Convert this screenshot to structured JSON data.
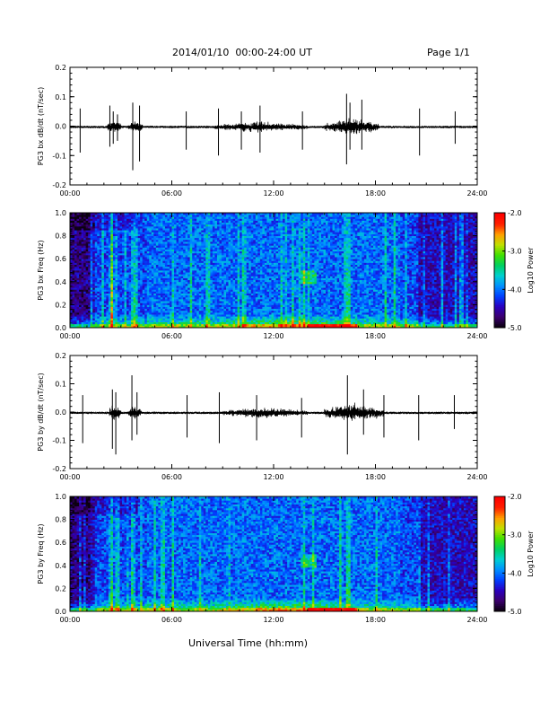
{
  "header": {
    "title": "2014/01/10  00:00-24:00 UT",
    "page": "Page 1/1"
  },
  "chart_data": [
    {
      "type": "line",
      "ylabel": "PG3 bx dB/dt (nT/sec)",
      "xlim": [
        0,
        24
      ],
      "ylim": [
        -0.2,
        0.2
      ],
      "xticks": [
        "00:00",
        "06:00",
        "12:00",
        "18:00",
        "24:00"
      ],
      "yticks": [
        "-0.2",
        "-0.1",
        "0.0",
        "0.1",
        "0.2"
      ],
      "color": "#000000",
      "spikes": [
        {
          "t": 0.6,
          "min": -0.09,
          "max": 0.06
        },
        {
          "t": 2.35,
          "min": -0.07,
          "max": 0.07
        },
        {
          "t": 2.55,
          "min": -0.06,
          "max": 0.05
        },
        {
          "t": 2.8,
          "min": -0.05,
          "max": 0.04
        },
        {
          "t": 3.7,
          "min": -0.15,
          "max": 0.08
        },
        {
          "t": 4.1,
          "min": -0.12,
          "max": 0.07
        },
        {
          "t": 6.85,
          "min": -0.08,
          "max": 0.05
        },
        {
          "t": 8.75,
          "min": -0.1,
          "max": 0.06
        },
        {
          "t": 10.1,
          "min": -0.08,
          "max": 0.05
        },
        {
          "t": 11.2,
          "min": -0.09,
          "max": 0.07
        },
        {
          "t": 13.7,
          "min": -0.08,
          "max": 0.05
        },
        {
          "t": 16.3,
          "min": -0.13,
          "max": 0.11
        },
        {
          "t": 16.5,
          "min": -0.08,
          "max": 0.08
        },
        {
          "t": 17.2,
          "min": -0.08,
          "max": 0.09
        },
        {
          "t": 20.6,
          "min": -0.1,
          "max": 0.06
        },
        {
          "t": 22.7,
          "min": -0.06,
          "max": 0.05
        }
      ],
      "activity": [
        {
          "t0": 2.2,
          "t1": 3.0,
          "amp": 0.035
        },
        {
          "t0": 3.4,
          "t1": 4.3,
          "amp": 0.025
        },
        {
          "t0": 8.5,
          "t1": 14.0,
          "amp": 0.022
        },
        {
          "t0": 15.0,
          "t1": 18.2,
          "amp": 0.035
        }
      ]
    },
    {
      "type": "heatmap",
      "ylabel": "PG3 bx Freq (Hz)",
      "xlim": [
        0,
        24
      ],
      "ylim": [
        0,
        1
      ],
      "xticks": [
        "00:00",
        "06:00",
        "12:00",
        "18:00",
        "24:00"
      ],
      "yticks": [
        "0.0",
        "0.2",
        "0.4",
        "0.6",
        "0.8",
        "1.0"
      ],
      "colorbar": {
        "label": "Log10 Power",
        "min": -5.0,
        "max": -2.0,
        "ticks": [
          "-2.0",
          "-3.0",
          "-4.0",
          "-5.0"
        ]
      },
      "colormap": [
        "#0b0010",
        "#3c0070",
        "#2a00c0",
        "#0040ff",
        "#0090ff",
        "#00d0d0",
        "#00d060",
        "#40e000",
        "#c0e000",
        "#ffa000",
        "#ff2000",
        "#ff0000"
      ],
      "bursts": [
        2.45,
        3.75,
        16.4
      ],
      "emission": {
        "t0": 13.6,
        "t1": 14.6,
        "f0": 0.38,
        "f1": 0.5
      }
    },
    {
      "type": "line",
      "ylabel": "PG3 by dB/dt (nT/sec)",
      "xlim": [
        0,
        24
      ],
      "ylim": [
        -0.2,
        0.2
      ],
      "xticks": [
        "00:00",
        "06:00",
        "12:00",
        "18:00",
        "24:00"
      ],
      "yticks": [
        "-0.2",
        "-0.1",
        "0.0",
        "0.1",
        "0.2"
      ],
      "color": "#000000",
      "spikes": [
        {
          "t": 0.75,
          "min": -0.11,
          "max": 0.06
        },
        {
          "t": 2.5,
          "min": -0.13,
          "max": 0.08
        },
        {
          "t": 2.7,
          "min": -0.15,
          "max": 0.07
        },
        {
          "t": 3.65,
          "min": -0.1,
          "max": 0.13
        },
        {
          "t": 3.95,
          "min": -0.08,
          "max": 0.07
        },
        {
          "t": 6.9,
          "min": -0.09,
          "max": 0.06
        },
        {
          "t": 8.8,
          "min": -0.11,
          "max": 0.07
        },
        {
          "t": 11.0,
          "min": -0.1,
          "max": 0.06
        },
        {
          "t": 13.65,
          "min": -0.09,
          "max": 0.05
        },
        {
          "t": 16.35,
          "min": -0.15,
          "max": 0.13
        },
        {
          "t": 17.3,
          "min": -0.08,
          "max": 0.08
        },
        {
          "t": 18.5,
          "min": -0.09,
          "max": 0.06
        },
        {
          "t": 20.55,
          "min": -0.1,
          "max": 0.06
        },
        {
          "t": 22.65,
          "min": -0.06,
          "max": 0.06
        }
      ],
      "activity": [
        {
          "t0": 2.3,
          "t1": 3.0,
          "amp": 0.04
        },
        {
          "t0": 3.4,
          "t1": 4.2,
          "amp": 0.03
        },
        {
          "t0": 9.0,
          "t1": 14.0,
          "amp": 0.022
        },
        {
          "t0": 15.0,
          "t1": 18.5,
          "amp": 0.04
        }
      ]
    },
    {
      "type": "heatmap",
      "ylabel": "PG3 by Freq (Hz)",
      "xlim": [
        0,
        24
      ],
      "ylim": [
        0,
        1
      ],
      "xticks": [
        "00:00",
        "06:00",
        "12:00",
        "18:00",
        "24:00"
      ],
      "yticks": [
        "0.0",
        "0.2",
        "0.4",
        "0.6",
        "0.8",
        "1.0"
      ],
      "colorbar": {
        "label": "Log10 Power",
        "min": -5.0,
        "max": -2.0,
        "ticks": [
          "-2.0",
          "-3.0",
          "-4.0",
          "-5.0"
        ]
      },
      "colormap": [
        "#0b0010",
        "#3c0070",
        "#2a00c0",
        "#0040ff",
        "#0090ff",
        "#00d0d0",
        "#00d060",
        "#40e000",
        "#c0e000",
        "#ffa000",
        "#ff2000",
        "#ff0000"
      ],
      "bursts": [
        2.45,
        3.7,
        16.4
      ],
      "emission": {
        "t0": 13.6,
        "t1": 14.6,
        "f0": 0.38,
        "f1": 0.5
      }
    }
  ],
  "xlabel": "Universal Time (hh:mm)"
}
